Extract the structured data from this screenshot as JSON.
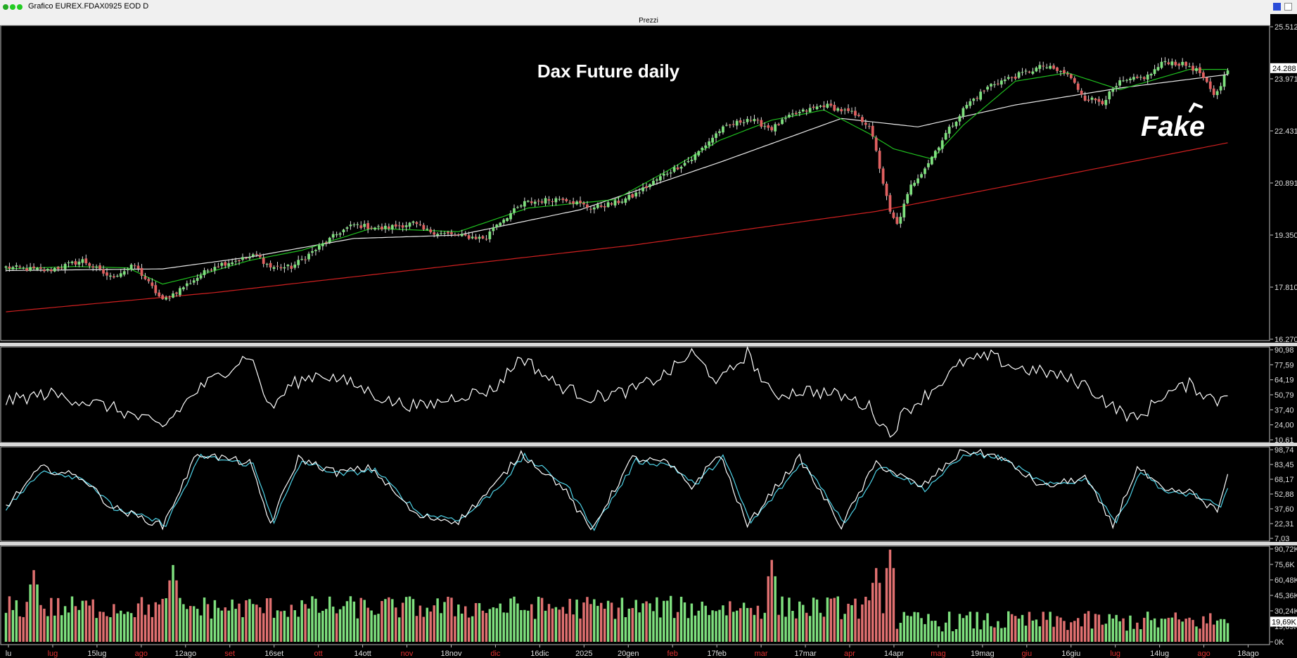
{
  "window": {
    "title": "Grafico EUREX.FDAX0925 EOD D",
    "panel_label": "Prezzi"
  },
  "annotations": {
    "chart_title": "Dax Future daily",
    "handwritten_note": "Fake"
  },
  "colors": {
    "background": "#000000",
    "up_candle": "#7ee07e",
    "down_candle": "#e06060",
    "ma_short": "#1fbf1f",
    "ma_mid": "#e8e8e8",
    "ma_long": "#d02020",
    "stoch_k": "#ffffff",
    "stoch_d": "#4fd3e8",
    "vol_up": "#7ee07e",
    "vol_down": "#e07070",
    "panel_border": "#c0c0c0"
  },
  "chart_data": [
    {
      "type": "candlestick",
      "panel": "Prezzi",
      "y_ticks": [
        "25.512",
        "23.971",
        "22.431",
        "20.891",
        "19.350",
        "17.810",
        "16.270"
      ],
      "ylim": [
        16270,
        25512
      ],
      "last_price_label": "24.288",
      "x_labels": [
        "lu",
        "lug",
        "15lug",
        "ago",
        "12ago",
        "set",
        "16set",
        "ott",
        "14ott",
        "nov",
        "18nov",
        "dic",
        "16dic",
        "2025",
        "20gen",
        "feb",
        "17feb",
        "mar",
        "17mar",
        "apr",
        "14apr",
        "mag",
        "19mag",
        "giu",
        "16giu",
        "lug",
        "14lug",
        "ago",
        "18ago"
      ],
      "red_x_labels": [
        "lug",
        "ago",
        "set",
        "ott",
        "nov",
        "dic",
        "feb",
        "mar",
        "apr",
        "mag",
        "giu",
        "lug",
        "ago"
      ],
      "close_anchors": [
        [
          0,
          18400
        ],
        [
          12,
          18300
        ],
        [
          22,
          18600
        ],
        [
          30,
          18100
        ],
        [
          37,
          18450
        ],
        [
          45,
          17400
        ],
        [
          55,
          18100
        ],
        [
          60,
          18450
        ],
        [
          72,
          18750
        ],
        [
          76,
          18400
        ],
        [
          82,
          18400
        ],
        [
          90,
          19000
        ],
        [
          96,
          19450
        ],
        [
          100,
          19650
        ],
        [
          108,
          19550
        ],
        [
          117,
          19700
        ],
        [
          120,
          19500
        ],
        [
          128,
          19350
        ],
        [
          138,
          19250
        ],
        [
          140,
          19600
        ],
        [
          149,
          20300
        ],
        [
          160,
          20450
        ],
        [
          168,
          20150
        ],
        [
          175,
          20300
        ],
        [
          180,
          20500
        ],
        [
          190,
          21200
        ],
        [
          197,
          21600
        ],
        [
          205,
          22450
        ],
        [
          213,
          22800
        ],
        [
          220,
          22500
        ],
        [
          226,
          22900
        ],
        [
          235,
          23200
        ],
        [
          243,
          22950
        ],
        [
          248,
          22600
        ],
        [
          250,
          21800
        ],
        [
          254,
          20000
        ],
        [
          256,
          19650
        ],
        [
          260,
          20800
        ],
        [
          265,
          21500
        ],
        [
          270,
          22350
        ],
        [
          276,
          23200
        ],
        [
          283,
          23800
        ],
        [
          290,
          24050
        ],
        [
          298,
          24350
        ],
        [
          305,
          24100
        ],
        [
          310,
          23400
        ],
        [
          315,
          23300
        ],
        [
          320,
          23850
        ],
        [
          328,
          24050
        ],
        [
          333,
          24500
        ],
        [
          340,
          24350
        ],
        [
          343,
          24150
        ],
        [
          347,
          23450
        ],
        [
          349,
          23800
        ],
        [
          351,
          24290
        ]
      ],
      "ma_short_anchors": [
        [
          0,
          18350
        ],
        [
          20,
          18420
        ],
        [
          35,
          18380
        ],
        [
          45,
          17900
        ],
        [
          55,
          18150
        ],
        [
          70,
          18600
        ],
        [
          85,
          18900
        ],
        [
          105,
          19550
        ],
        [
          130,
          19450
        ],
        [
          150,
          20150
        ],
        [
          175,
          20400
        ],
        [
          190,
          21250
        ],
        [
          205,
          22150
        ],
        [
          220,
          22750
        ],
        [
          235,
          23050
        ],
        [
          248,
          22350
        ],
        [
          255,
          21900
        ],
        [
          266,
          21600
        ],
        [
          275,
          22600
        ],
        [
          290,
          23900
        ],
        [
          305,
          24150
        ],
        [
          320,
          23650
        ],
        [
          340,
          24250
        ],
        [
          351,
          24250
        ]
      ],
      "ma_mid_anchors": [
        [
          0,
          18300
        ],
        [
          45,
          18350
        ],
        [
          70,
          18700
        ],
        [
          100,
          19250
        ],
        [
          130,
          19350
        ],
        [
          165,
          20100
        ],
        [
          205,
          21500
        ],
        [
          240,
          22800
        ],
        [
          262,
          22550
        ],
        [
          290,
          23200
        ],
        [
          320,
          23700
        ],
        [
          351,
          24100
        ]
      ],
      "ma_long_anchors": [
        [
          0,
          17080
        ],
        [
          60,
          17650
        ],
        [
          120,
          18350
        ],
        [
          180,
          19050
        ],
        [
          250,
          20050
        ],
        [
          300,
          21050
        ],
        [
          351,
          22080
        ]
      ]
    },
    {
      "type": "line",
      "panel": "oscillator-1",
      "y_ticks": [
        "90,98",
        "77,59",
        "64,19",
        "50,79",
        "37,40",
        "24,00",
        "10,61"
      ],
      "ylim": [
        10.61,
        90.98
      ],
      "series": [
        {
          "color": "#ffffff",
          "anchors": [
            [
              0,
              45
            ],
            [
              12,
              52
            ],
            [
              30,
              40
            ],
            [
              45,
              22
            ],
            [
              55,
              55
            ],
            [
              70,
              87
            ],
            [
              76,
              38
            ],
            [
              82,
              60
            ],
            [
              90,
              70
            ],
            [
              100,
              60
            ],
            [
              110,
              45
            ],
            [
              120,
              40
            ],
            [
              130,
              50
            ],
            [
              140,
              55
            ],
            [
              148,
              85
            ],
            [
              158,
              60
            ],
            [
              168,
              48
            ],
            [
              180,
              55
            ],
            [
              190,
              70
            ],
            [
              197,
              88
            ],
            [
              205,
              62
            ],
            [
              213,
              88
            ],
            [
              220,
              50
            ],
            [
              230,
              55
            ],
            [
              240,
              50
            ],
            [
              248,
              40
            ],
            [
              254,
              15
            ],
            [
              258,
              35
            ],
            [
              266,
              55
            ],
            [
              275,
              80
            ],
            [
              283,
              85
            ],
            [
              290,
              75
            ],
            [
              300,
              70
            ],
            [
              310,
              60
            ],
            [
              318,
              40
            ],
            [
              325,
              28
            ],
            [
              332,
              50
            ],
            [
              340,
              60
            ],
            [
              348,
              45
            ],
            [
              351,
              55
            ]
          ]
        }
      ]
    },
    {
      "type": "line",
      "panel": "oscillator-2 (stochastic)",
      "y_ticks": [
        "98,74",
        "83,45",
        "68,17",
        "52,88",
        "37,60",
        "22,31",
        "7,03"
      ],
      "ylim": [
        7.03,
        98.74
      ],
      "series": [
        {
          "name": "",
          "color": "#ffffff",
          "anchors": [
            [
              0,
              40
            ],
            [
              10,
              80
            ],
            [
              22,
              70
            ],
            [
              30,
              40
            ],
            [
              45,
              20
            ],
            [
              55,
              95
            ],
            [
              70,
              85
            ],
            [
              76,
              22
            ],
            [
              84,
              90
            ],
            [
              95,
              75
            ],
            [
              105,
              80
            ],
            [
              118,
              30
            ],
            [
              130,
              25
            ],
            [
              140,
              60
            ],
            [
              148,
              95
            ],
            [
              160,
              60
            ],
            [
              168,
              15
            ],
            [
              180,
              90
            ],
            [
              190,
              85
            ],
            [
              197,
              60
            ],
            [
              205,
              95
            ],
            [
              213,
              20
            ],
            [
              220,
              55
            ],
            [
              228,
              90
            ],
            [
              240,
              20
            ],
            [
              250,
              85
            ],
            [
              263,
              60
            ],
            [
              275,
              98
            ],
            [
              285,
              92
            ],
            [
              298,
              60
            ],
            [
              310,
              70
            ],
            [
              318,
              20
            ],
            [
              325,
              80
            ],
            [
              333,
              55
            ],
            [
              340,
              55
            ],
            [
              348,
              35
            ],
            [
              351,
              70
            ]
          ]
        },
        {
          "name": "",
          "color": "#4fd3e8",
          "anchors": [
            [
              0,
              38
            ],
            [
              11,
              78
            ],
            [
              23,
              68
            ],
            [
              31,
              38
            ],
            [
              46,
              22
            ],
            [
              56,
              92
            ],
            [
              71,
              83
            ],
            [
              77,
              25
            ],
            [
              85,
              87
            ],
            [
              96,
              73
            ],
            [
              106,
              78
            ],
            [
              119,
              32
            ],
            [
              131,
              27
            ],
            [
              141,
              58
            ],
            [
              149,
              92
            ],
            [
              161,
              62
            ],
            [
              169,
              18
            ],
            [
              181,
              87
            ],
            [
              191,
              83
            ],
            [
              198,
              62
            ],
            [
              206,
              92
            ],
            [
              214,
              23
            ],
            [
              221,
              52
            ],
            [
              229,
              87
            ],
            [
              241,
              23
            ],
            [
              251,
              82
            ],
            [
              264,
              58
            ],
            [
              276,
              95
            ],
            [
              286,
              90
            ],
            [
              299,
              62
            ],
            [
              311,
              68
            ],
            [
              319,
              23
            ],
            [
              326,
              77
            ],
            [
              334,
              53
            ],
            [
              341,
              53
            ],
            [
              349,
              38
            ],
            [
              351,
              60
            ]
          ]
        }
      ]
    },
    {
      "type": "bar",
      "panel": "volume",
      "y_ticks": [
        "90,72K",
        "75,6K",
        "60,48K",
        "45,36K",
        "30,24K",
        "19,69K",
        "0K"
      ],
      "ylim": [
        0,
        90720
      ],
      "last_value_label": "19,69K",
      "spikes": [
        [
          8,
          70000
        ],
        [
          48,
          75000
        ],
        [
          220,
          80000
        ],
        [
          250,
          72000
        ],
        [
          254,
          90000
        ]
      ],
      "typical_range_before_apr": [
        22000,
        45000
      ],
      "typical_range_after_apr": [
        10000,
        30000
      ]
    }
  ]
}
